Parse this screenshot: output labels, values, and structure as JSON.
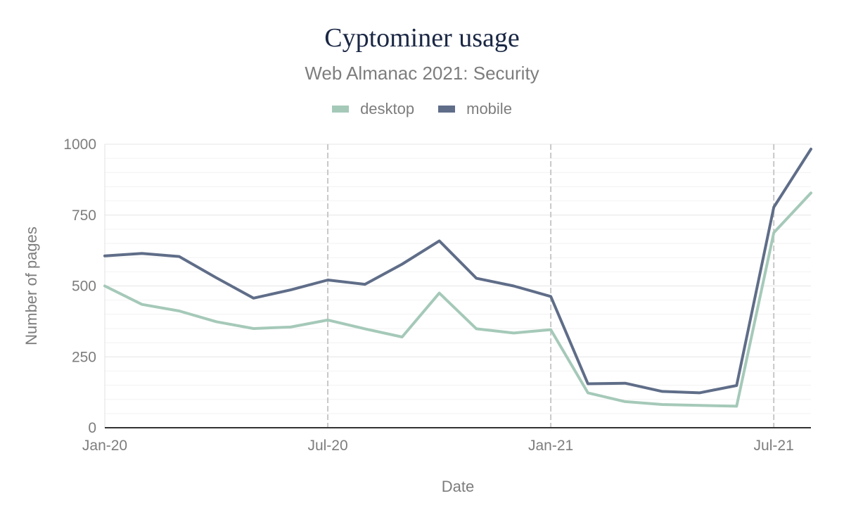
{
  "chart_data": {
    "type": "line",
    "title": "Cyptominer usage",
    "subtitle": "Web Almanac 2021: Security",
    "xlabel": "Date",
    "ylabel": "Number of pages",
    "ylim": [
      0,
      1000
    ],
    "y_ticks": [
      {
        "value": 0,
        "label": "0"
      },
      {
        "value": 250,
        "label": "250"
      },
      {
        "value": 500,
        "label": "500"
      },
      {
        "value": 750,
        "label": "750"
      },
      {
        "value": 1000,
        "label": "1000"
      }
    ],
    "x_ticks": [
      {
        "index": 0,
        "label": "Jan-20"
      },
      {
        "index": 6,
        "label": "Jul-20"
      },
      {
        "index": 12,
        "label": "Jan-21"
      },
      {
        "index": 18,
        "label": "Jul-21"
      }
    ],
    "x_index_range": [
      0,
      19
    ],
    "categories": [
      "Jan-20",
      "Feb-20",
      "Mar-20",
      "Apr-20",
      "May-20",
      "Jun-20",
      "Jul-20",
      "Aug-20",
      "Sep-20",
      "Oct-20",
      "Nov-20",
      "Dec-20",
      "Jan-21",
      "Feb-21",
      "Mar-21",
      "Apr-21",
      "May-21",
      "Jun-21",
      "Jul-21",
      "Aug-21"
    ],
    "series": [
      {
        "name": "desktop",
        "color": "#a5c9b9",
        "values": [
          500,
          435,
          412,
          374,
          350,
          355,
          380,
          349,
          320,
          475,
          349,
          334,
          346,
          123,
          92,
          82,
          79,
          76,
          688,
          828
        ]
      },
      {
        "name": "mobile",
        "color": "#5f6d88",
        "values": [
          606,
          615,
          604,
          529,
          457,
          486,
          521,
          506,
          577,
          659,
          527,
          500,
          463,
          155,
          157,
          128,
          123,
          149,
          778,
          983
        ]
      }
    ],
    "grid": true,
    "legend_position": "top-center"
  }
}
